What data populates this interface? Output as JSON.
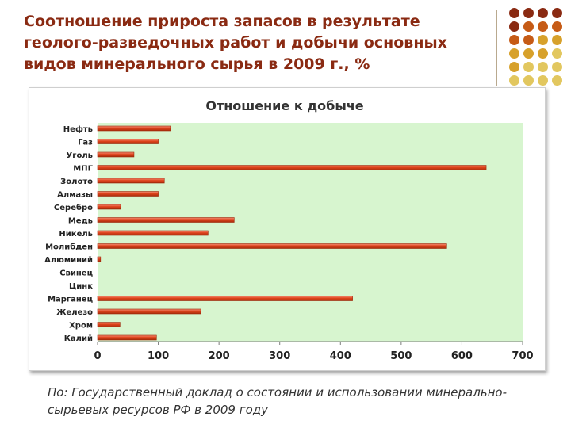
{
  "slide": {
    "title": "Соотношение прироста запасов в результате геолого-разведочных работ и добычи основных видов минерального сырья в 2009 г., %",
    "source": "По: Государственный доклад о состоянии и использовании минерально-сырьевых ресурсов РФ в 2009 году"
  },
  "colors": {
    "title": "#8a2a12",
    "plot_background": "#d7f5cf",
    "bar_fill": "#e0441c",
    "bar_edge": "#9c2608",
    "dot_palette": [
      "#8a2a12",
      "#c65b16",
      "#d7a12b",
      "#e2c75f"
    ]
  },
  "chart_data": {
    "type": "bar",
    "orientation": "horizontal",
    "title": "Отношение к добыче",
    "categories": [
      "Нефть",
      "Газ",
      "Уголь",
      "МПГ",
      "Золото",
      "Алмазы",
      "Серебро",
      "Медь",
      "Никель",
      "Молибден",
      "Алюминий",
      "Свинец",
      "Цинк",
      "Марганец",
      "Железо",
      "Хром",
      "Калий"
    ],
    "values": [
      120,
      100,
      60,
      640,
      110,
      100,
      38,
      225,
      182,
      575,
      5,
      0,
      0,
      420,
      170,
      37,
      97
    ],
    "xlim": [
      0,
      700
    ],
    "xticks": [
      0,
      100,
      200,
      300,
      400,
      500,
      600,
      700
    ],
    "grid": false,
    "legend": "none"
  }
}
